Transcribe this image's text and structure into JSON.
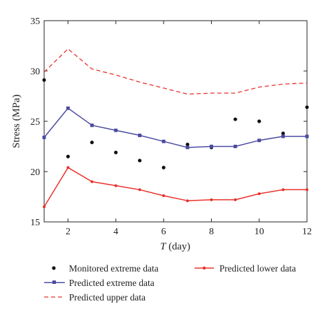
{
  "chart_data": {
    "type": "line",
    "title": "",
    "xlabel_italic": "T",
    "xlabel_rest": " (day)",
    "ylabel": "Stress (MPa)",
    "xlim": [
      1,
      12
    ],
    "ylim": [
      15,
      35
    ],
    "xticks": [
      2,
      4,
      6,
      8,
      10,
      12
    ],
    "yticks": [
      15,
      20,
      25,
      30,
      35
    ],
    "grid": false,
    "legend_placement": "bottom",
    "series": [
      {
        "name": "Monitored extreme data",
        "kind": "scatter",
        "color": "#111111",
        "x": [
          1,
          2,
          3,
          4,
          5,
          6,
          7,
          8,
          9,
          10,
          11,
          12
        ],
        "y": [
          29.1,
          21.5,
          22.9,
          21.9,
          21.1,
          20.4,
          22.7,
          22.4,
          25.2,
          25.0,
          23.8,
          26.4
        ]
      },
      {
        "name": "Predicted extreme data",
        "kind": "line-square",
        "color": "#4a4aa0",
        "x": [
          1,
          2,
          3,
          4,
          5,
          6,
          7,
          8,
          9,
          10,
          11,
          12
        ],
        "y": [
          23.4,
          26.3,
          24.6,
          24.1,
          23.6,
          23.0,
          22.4,
          22.5,
          22.5,
          23.1,
          23.5,
          23.5
        ]
      },
      {
        "name": "Predicted upper data",
        "kind": "dashed",
        "color": "#e8302a",
        "x": [
          1,
          2,
          3,
          4,
          5,
          6,
          7,
          8,
          9,
          10,
          11,
          12
        ],
        "y": [
          29.9,
          32.2,
          30.2,
          29.6,
          28.9,
          28.3,
          27.7,
          27.8,
          27.8,
          28.4,
          28.7,
          28.8
        ]
      },
      {
        "name": "Predicted lower data",
        "kind": "line-dot",
        "color": "#e8302a",
        "x": [
          1,
          2,
          3,
          4,
          5,
          6,
          7,
          8,
          9,
          10,
          11,
          12
        ],
        "y": [
          16.5,
          20.4,
          19.0,
          18.6,
          18.2,
          17.6,
          17.1,
          17.2,
          17.2,
          17.8,
          18.2,
          18.2
        ]
      }
    ]
  }
}
